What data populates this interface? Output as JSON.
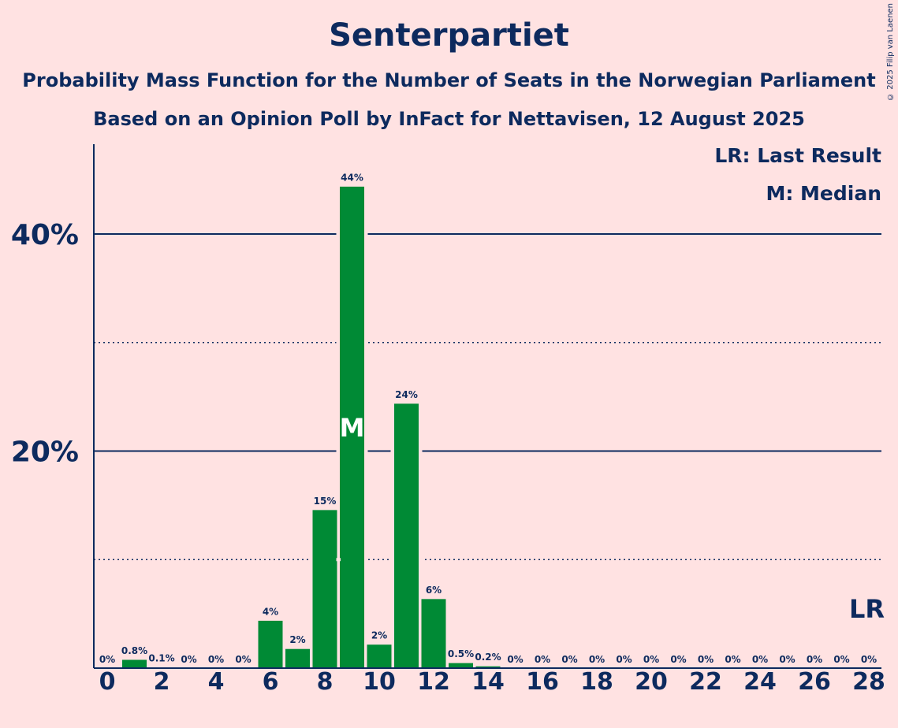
{
  "title": "Senterpartiet",
  "subtitle1": "Probability Mass Function for the Number of Seats in the Norwegian Parliament",
  "subtitle2": "Based on an Opinion Poll by InFact for Nettavisen, 12 August 2025",
  "copyright": "© 2025 Filip van Laenen",
  "legend": {
    "last_result": "LR: Last Result",
    "median": "M: Median"
  },
  "colors": {
    "background": "#FFE2E2",
    "bar": "#008A35",
    "text": "#0D2A5E"
  },
  "chart_data": {
    "type": "bar",
    "x": [
      0,
      1,
      2,
      3,
      4,
      5,
      6,
      7,
      8,
      9,
      10,
      11,
      12,
      13,
      14,
      15,
      16,
      17,
      18,
      19,
      20,
      21,
      22,
      23,
      24,
      25,
      26,
      27,
      28
    ],
    "values": [
      0,
      0.8,
      0.1,
      0,
      0,
      0,
      4.4,
      1.8,
      14.6,
      44.4,
      2.2,
      24.4,
      6.4,
      0.5,
      0.2,
      0,
      0,
      0,
      0,
      0,
      0,
      0,
      0,
      0,
      0,
      0,
      0,
      0,
      0
    ],
    "value_labels": [
      "0%",
      "0.8%",
      "0.1%",
      "0%",
      "0%",
      "0%",
      "4%",
      "2%",
      "15%",
      "44%",
      "2%",
      "24%",
      "6%",
      "0.5%",
      "0.2%",
      "0%",
      "0%",
      "0%",
      "0%",
      "0%",
      "0%",
      "0%",
      "0%",
      "0%",
      "0%",
      "0%",
      "0%",
      "0%",
      "0%"
    ],
    "x_tick_labels": [
      "0",
      "2",
      "4",
      "6",
      "8",
      "10",
      "12",
      "14",
      "16",
      "18",
      "20",
      "22",
      "24",
      "26",
      "28"
    ],
    "x_ticks": [
      0,
      2,
      4,
      6,
      8,
      10,
      12,
      14,
      16,
      18,
      20,
      22,
      24,
      26,
      28
    ],
    "y_ticks_major": [
      20,
      40
    ],
    "y_tick_labels": [
      "20%",
      "40%"
    ],
    "y_ticks_minor": [
      10,
      30
    ],
    "ylim": [
      0,
      48.3
    ],
    "median_seat": 9,
    "median_label": "M",
    "last_result_seat": 28,
    "last_result_label": "LR"
  }
}
